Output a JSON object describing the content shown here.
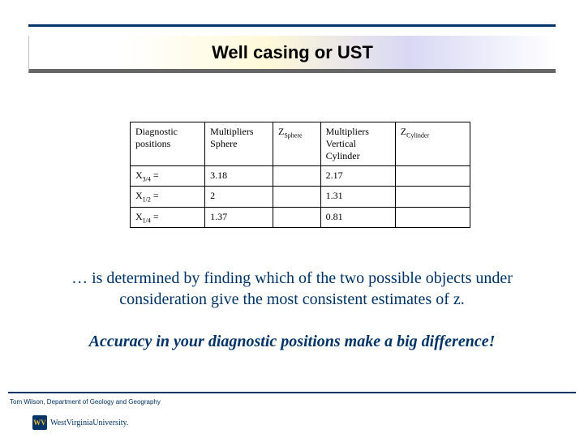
{
  "colors": {
    "rule": "#003366",
    "text_primary": "#003366",
    "table_border": "#000000",
    "background": "#ffffff",
    "title_text": "#000000",
    "shadow": "#666666",
    "gradient_start": "#ffffff",
    "gradient_mid1": "#fff9d8",
    "gradient_mid2": "#d8d8f4",
    "gradient_end": "#ffffff",
    "logo_bg": "#003366",
    "logo_fg": "#e8b530"
  },
  "title": "Well casing or UST",
  "table": {
    "columns": [
      "Diagnostic positions",
      "Multipliers Sphere",
      "Z_Sphere",
      "Multipliers Vertical Cylinder",
      "Z_Cylinder"
    ],
    "rows": [
      {
        "pos_label": "X",
        "pos_sub": "3/4",
        "pos_suffix": " =",
        "sphere": "3.18",
        "zs": "",
        "vc": "2.17",
        "zc": ""
      },
      {
        "pos_label": "X",
        "pos_sub": "1/2",
        "pos_suffix": " =",
        "sphere": "2",
        "zs": "",
        "vc": "1.31",
        "zc": ""
      },
      {
        "pos_label": "X",
        "pos_sub": "1/4",
        "pos_suffix": " =",
        "sphere": "1.37",
        "zs": "",
        "vc": "0.81",
        "zc": ""
      }
    ]
  },
  "body": "… is determined by finding which of the two possible objects under consideration give the most consistent estimates of z.",
  "accuracy": "Accuracy in your diagnostic positions make a big difference!",
  "footer": "Tom Wilson, Department of Geology and Geography",
  "logo": {
    "badge": "WV",
    "label": "WestVirginiaUniversity."
  }
}
